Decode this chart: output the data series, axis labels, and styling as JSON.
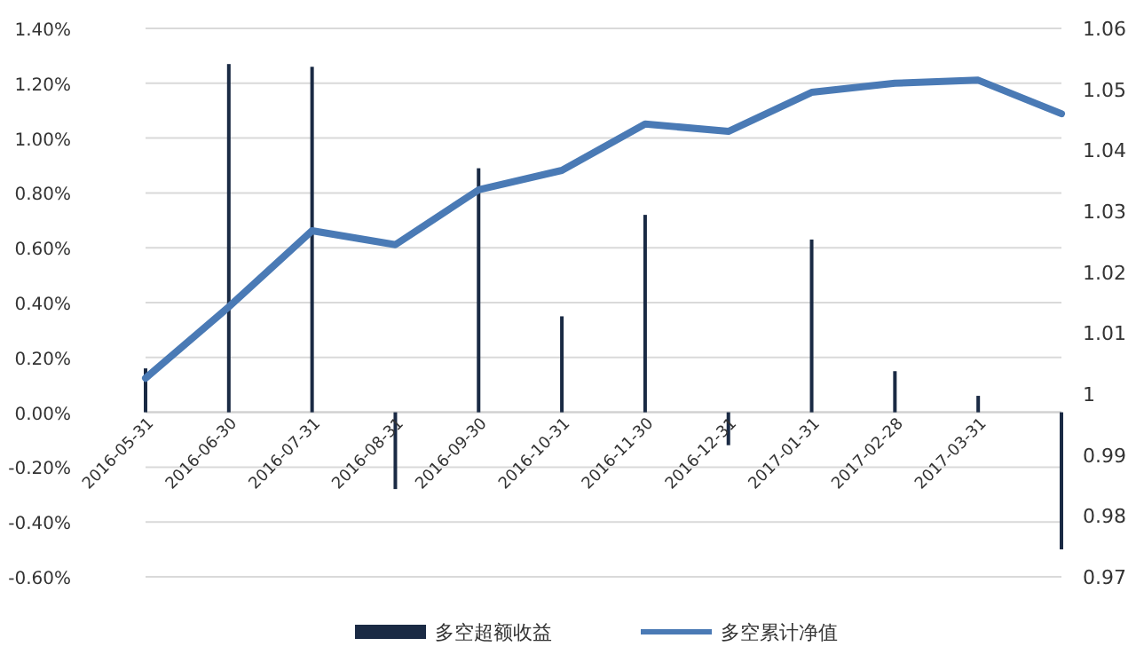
{
  "chart_data": {
    "type": "bar",
    "categories": [
      "2016-05-31",
      "2016-06-30",
      "2016-07-31",
      "2016-08-31",
      "2016-09-30",
      "2016-10-31",
      "2016-11-30",
      "2016-12-31",
      "2017-01-31",
      "2017-02-28",
      "2017-03-31",
      null
    ],
    "series": [
      {
        "name": "多空超额收益",
        "color": "#1a2a44",
        "values": [
          0.16,
          1.27,
          1.26,
          -0.28,
          0.89,
          0.35,
          0.72,
          -0.12,
          0.63,
          0.15,
          0.06,
          -0.5
        ]
      },
      {
        "name": "多空累计净值",
        "type": "line",
        "axis": "y2",
        "color": "#4a7ab5",
        "values": [
          1.0026,
          1.0143,
          1.0268,
          1.0245,
          1.0335,
          1.0367,
          1.0443,
          1.0431,
          1.0495,
          1.051,
          1.0515,
          1.046
        ]
      }
    ],
    "ylim": [
      -0.6,
      1.4
    ],
    "yticks": [
      {
        "value": -0.6,
        "label": "-0.60%"
      },
      {
        "value": -0.4,
        "label": "-0.40%"
      },
      {
        "value": -0.2,
        "label": "-0.20%"
      },
      {
        "value": 0,
        "label": "0.00%"
      },
      {
        "value": 0.2,
        "label": "0.20%"
      },
      {
        "value": 0.4,
        "label": "0.40%"
      },
      {
        "value": 0.6,
        "label": "0.60%"
      },
      {
        "value": 0.8,
        "label": "0.80%"
      },
      {
        "value": 1.0,
        "label": "1.00%"
      },
      {
        "value": 1.2,
        "label": "1.20%"
      },
      {
        "value": 1.4,
        "label": "1.40%"
      }
    ],
    "y2lim": [
      0.97,
      1.06
    ],
    "y2ticks": [
      0.97,
      0.98,
      0.99,
      1,
      1.01,
      1.02,
      1.03,
      1.04,
      1.05,
      1.06
    ],
    "grid": "y",
    "legend": "bottom"
  }
}
